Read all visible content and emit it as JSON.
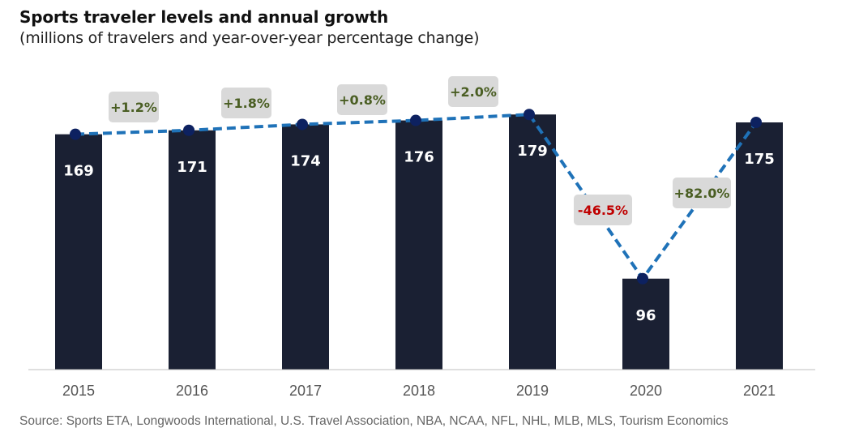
{
  "title": "Sports traveler levels and annual growth",
  "subtitle": "(millions of travelers and year-over-year percentage change)",
  "source": "Source: Sports ETA, Longwoods International, U.S. Travel Association, NBA, NCAA, NFL, NHL, MLB, MLS, Tourism Economics",
  "chart_data": {
    "type": "bar",
    "title": "Sports traveler levels and annual growth",
    "subtitle": "(millions of travelers and year-over-year percentage change)",
    "categories": [
      "2015",
      "2016",
      "2017",
      "2018",
      "2019",
      "2020",
      "2021"
    ],
    "values": [
      169,
      171,
      174,
      176,
      179,
      96,
      175
    ],
    "value_labels": [
      "169",
      "171",
      "174",
      "176",
      "179",
      "96",
      "175"
    ],
    "line_overlay": {
      "style": "dashed",
      "values": [
        169,
        171,
        174,
        176,
        179,
        96,
        175
      ]
    },
    "growth": [
      1.2,
      1.8,
      0.8,
      2.0,
      -46.5,
      82.0
    ],
    "growth_labels": [
      "+1.2%",
      "+1.8%",
      "+0.8%",
      "+2.0%",
      "-46.5%",
      "+82.0%"
    ],
    "ylim": [
      50,
      200
    ],
    "grid": false,
    "colors": {
      "bar": "#1a2033",
      "line": "#1f72b8",
      "dot": "#0d2160",
      "positive": "#4a5e23",
      "negative": "#c00000",
      "label_box": "#d9d9d9"
    }
  }
}
